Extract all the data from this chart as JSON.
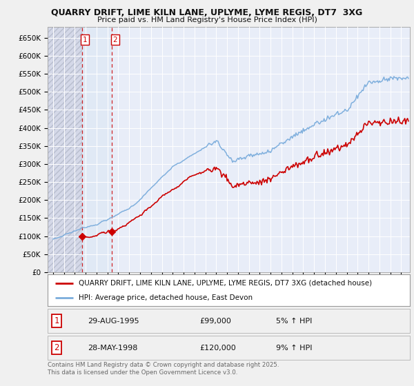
{
  "title1": "QUARRY DRIFT, LIME KILN LANE, UPLYME, LYME REGIS, DT7  3XG",
  "title2": "Price paid vs. HM Land Registry's House Price Index (HPI)",
  "legend_line1": "QUARRY DRIFT, LIME KILN LANE, UPLYME, LYME REGIS, DT7 3XG (detached house)",
  "legend_line2": "HPI: Average price, detached house, East Devon",
  "red_line_color": "#cc0000",
  "blue_line_color": "#7aacdc",
  "background_color": "#f0f0f0",
  "hatch_color": "#d8dce8",
  "transaction1": {
    "label": "1",
    "date": "29-AUG-1995",
    "price": 99000,
    "hpi_pct": "5% ↑ HPI",
    "x_year": 1995.66
  },
  "transaction2": {
    "label": "2",
    "date": "28-MAY-1998",
    "price": 120000,
    "hpi_pct": "9% ↑ HPI",
    "x_year": 1998.41
  },
  "ylabel_ticks": [
    0,
    50000,
    100000,
    150000,
    200000,
    250000,
    300000,
    350000,
    400000,
    450000,
    500000,
    550000,
    600000,
    650000
  ],
  "ytick_labels": [
    "£0",
    "£50K",
    "£100K",
    "£150K",
    "£200K",
    "£250K",
    "£300K",
    "£350K",
    "£400K",
    "£450K",
    "£500K",
    "£550K",
    "£600K",
    "£650K"
  ],
  "ylim": [
    0,
    680000
  ],
  "xlim_start": 1992.5,
  "xlim_end": 2025.8,
  "footnote": "Contains HM Land Registry data © Crown copyright and database right 2025.\nThis data is licensed under the Open Government Licence v3.0."
}
